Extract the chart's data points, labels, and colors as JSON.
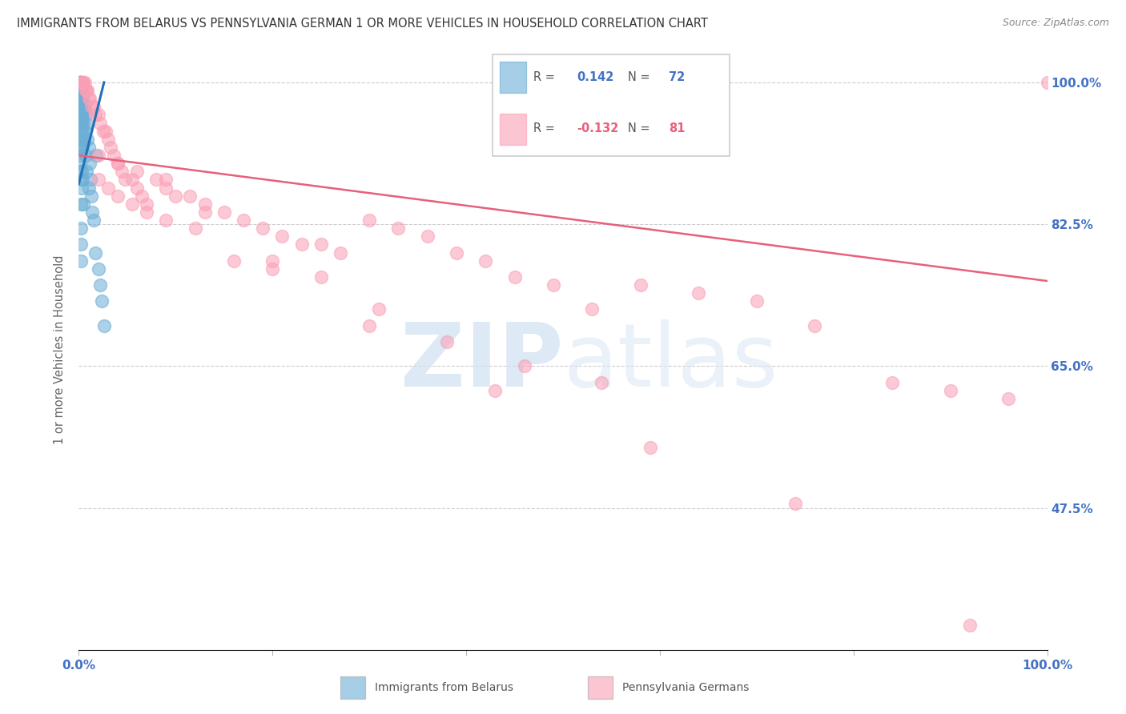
{
  "title": "IMMIGRANTS FROM BELARUS VS PENNSYLVANIA GERMAN 1 OR MORE VEHICLES IN HOUSEHOLD CORRELATION CHART",
  "source": "Source: ZipAtlas.com",
  "ylabel": "1 or more Vehicles in Household",
  "ytick_labels": [
    "100.0%",
    "82.5%",
    "65.0%",
    "47.5%"
  ],
  "ytick_values": [
    1.0,
    0.825,
    0.65,
    0.475
  ],
  "ymin": 0.3,
  "ymax": 1.04,
  "xmin": 0.0,
  "xmax": 1.0,
  "legend_blue_r": "0.142",
  "legend_blue_n": "72",
  "legend_pink_r": "-0.132",
  "legend_pink_n": "81",
  "legend_label_blue": "Immigrants from Belarus",
  "legend_label_pink": "Pennsylvania Germans",
  "blue_color": "#6baed6",
  "pink_color": "#fa9fb5",
  "blue_line_color": "#2171b5",
  "pink_line_color": "#e8607a",
  "background_color": "#ffffff",
  "grid_color": "#cccccc",
  "title_color": "#333333",
  "axis_label_color": "#4472c4",
  "blue_scatter_x": [
    0.001,
    0.001,
    0.001,
    0.001,
    0.001,
    0.001,
    0.001,
    0.001,
    0.001,
    0.001,
    0.001,
    0.001,
    0.001,
    0.001,
    0.001,
    0.001,
    0.001,
    0.001,
    0.001,
    0.001,
    0.002,
    0.002,
    0.002,
    0.002,
    0.002,
    0.002,
    0.002,
    0.002,
    0.002,
    0.002,
    0.002,
    0.002,
    0.002,
    0.002,
    0.003,
    0.003,
    0.003,
    0.003,
    0.003,
    0.003,
    0.003,
    0.003,
    0.003,
    0.004,
    0.004,
    0.004,
    0.004,
    0.004,
    0.005,
    0.005,
    0.005,
    0.005,
    0.006,
    0.006,
    0.007,
    0.007,
    0.008,
    0.008,
    0.009,
    0.01,
    0.01,
    0.011,
    0.012,
    0.013,
    0.014,
    0.015,
    0.017,
    0.02,
    0.022,
    0.024,
    0.026,
    0.018
  ],
  "blue_scatter_y": [
    1.0,
    1.0,
    1.0,
    1.0,
    0.99,
    0.99,
    0.99,
    0.98,
    0.98,
    0.97,
    0.97,
    0.96,
    0.96,
    0.95,
    0.94,
    0.93,
    0.92,
    0.91,
    0.9,
    0.89,
    1.0,
    1.0,
    0.99,
    0.98,
    0.97,
    0.96,
    0.95,
    0.94,
    0.93,
    0.88,
    0.85,
    0.82,
    0.8,
    0.78,
    0.99,
    0.98,
    0.97,
    0.96,
    0.95,
    0.93,
    0.92,
    0.89,
    0.87,
    0.98,
    0.96,
    0.94,
    0.92,
    0.88,
    0.97,
    0.95,
    0.93,
    0.85,
    0.97,
    0.94,
    0.96,
    0.91,
    0.95,
    0.89,
    0.93,
    0.92,
    0.87,
    0.9,
    0.88,
    0.86,
    0.84,
    0.83,
    0.79,
    0.77,
    0.75,
    0.73,
    0.7,
    0.91
  ],
  "pink_scatter_x": [
    0.002,
    0.003,
    0.003,
    0.004,
    0.005,
    0.006,
    0.007,
    0.008,
    0.009,
    0.01,
    0.011,
    0.013,
    0.015,
    0.017,
    0.02,
    0.022,
    0.025,
    0.028,
    0.03,
    0.033,
    0.036,
    0.04,
    0.044,
    0.048,
    0.055,
    0.06,
    0.065,
    0.07,
    0.08,
    0.09,
    0.1,
    0.115,
    0.13,
    0.15,
    0.17,
    0.19,
    0.21,
    0.23,
    0.25,
    0.27,
    0.3,
    0.33,
    0.36,
    0.39,
    0.42,
    0.45,
    0.49,
    0.53,
    0.58,
    0.64,
    0.7,
    0.76,
    0.84,
    0.9,
    0.96,
    1.0,
    0.02,
    0.03,
    0.04,
    0.055,
    0.07,
    0.09,
    0.12,
    0.16,
    0.2,
    0.25,
    0.31,
    0.38,
    0.46,
    0.54,
    0.02,
    0.04,
    0.06,
    0.09,
    0.13,
    0.2,
    0.3,
    0.43,
    0.59,
    0.74,
    0.92
  ],
  "pink_scatter_y": [
    1.0,
    1.0,
    1.0,
    1.0,
    1.0,
    1.0,
    0.99,
    0.99,
    0.99,
    0.98,
    0.98,
    0.97,
    0.97,
    0.96,
    0.96,
    0.95,
    0.94,
    0.94,
    0.93,
    0.92,
    0.91,
    0.9,
    0.89,
    0.88,
    0.88,
    0.87,
    0.86,
    0.85,
    0.88,
    0.87,
    0.86,
    0.86,
    0.85,
    0.84,
    0.83,
    0.82,
    0.81,
    0.8,
    0.8,
    0.79,
    0.83,
    0.82,
    0.81,
    0.79,
    0.78,
    0.76,
    0.75,
    0.72,
    0.75,
    0.74,
    0.73,
    0.7,
    0.63,
    0.62,
    0.61,
    1.0,
    0.88,
    0.87,
    0.86,
    0.85,
    0.84,
    0.83,
    0.82,
    0.78,
    0.77,
    0.76,
    0.72,
    0.68,
    0.65,
    0.63,
    0.91,
    0.9,
    0.89,
    0.88,
    0.84,
    0.78,
    0.7,
    0.62,
    0.55,
    0.48,
    0.33
  ],
  "blue_line_x": [
    0.0,
    0.026
  ],
  "blue_line_y": [
    0.875,
    1.0
  ],
  "pink_line_x": [
    0.0,
    1.0
  ],
  "pink_line_y": [
    0.91,
    0.755
  ]
}
